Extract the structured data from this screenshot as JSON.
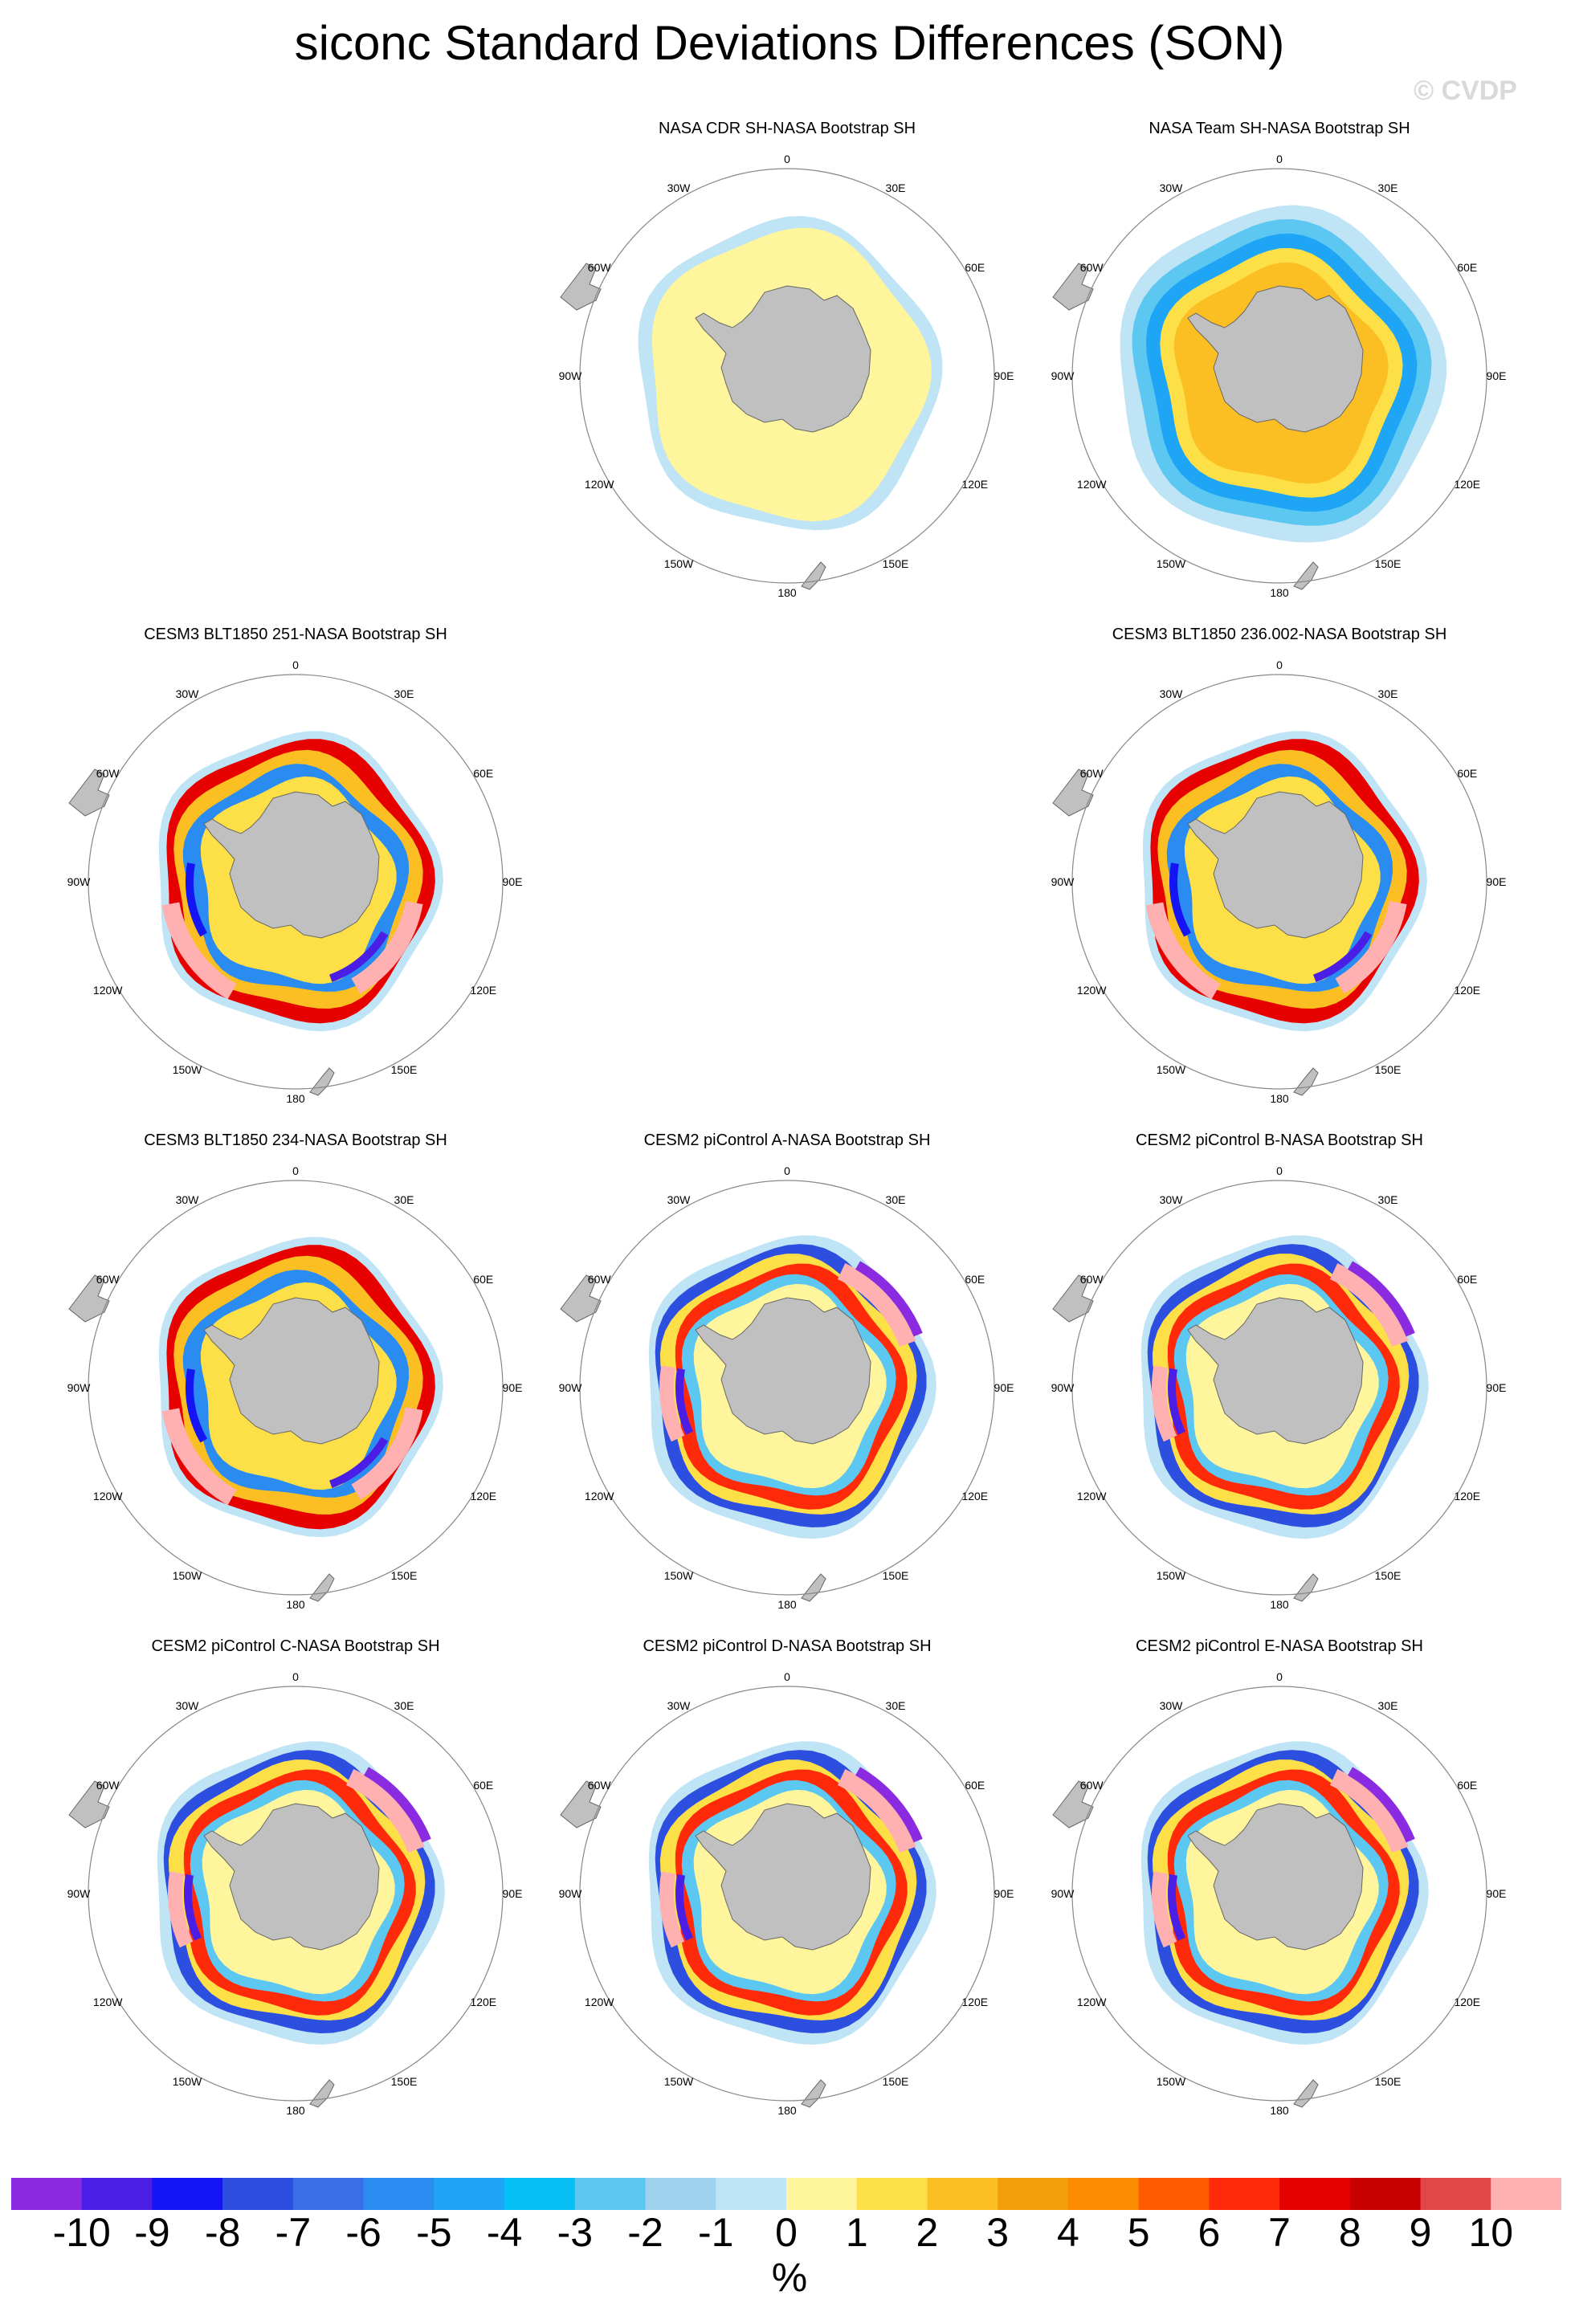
{
  "title": "siconc Standard Deviations Differences (SON)",
  "watermark": "© CVDP",
  "lon_labels": [
    "0",
    "30E",
    "60E",
    "90E",
    "120E",
    "150E",
    "180",
    "150W",
    "120W",
    "90W",
    "60W",
    "30W"
  ],
  "panels": [
    {
      "label": "NASA CDR SH-NASA Bootstrap SH",
      "style": "cdr"
    },
    {
      "label": "NASA Team SH-NASA Bootstrap SH",
      "style": "team"
    },
    {
      "label": "CESM3 BLT1850 251-NASA Bootstrap SH",
      "style": "model"
    },
    {
      "label": "CESM3 BLT1850 236.002-NASA Bootstrap SH",
      "style": "model"
    },
    {
      "label": "CESM3 BLT1850 234-NASA Bootstrap SH",
      "style": "model"
    },
    {
      "label": "CESM2 piControl A-NASA Bootstrap SH",
      "style": "cesm2"
    },
    {
      "label": "CESM2 piControl B-NASA Bootstrap SH",
      "style": "cesm2"
    },
    {
      "label": "CESM2 piControl C-NASA Bootstrap SH",
      "style": "cesm2"
    },
    {
      "label": "CESM2 piControl D-NASA Bootstrap SH",
      "style": "cesm2"
    },
    {
      "label": "CESM2 piControl E-NASA Bootstrap SH",
      "style": "cesm2"
    }
  ],
  "colorbar": {
    "colors": [
      "#8a2be2",
      "#4b1ee6",
      "#1414f5",
      "#2d4fe0",
      "#3a6ee8",
      "#2a8cf0",
      "#1ea5f5",
      "#06c0f5",
      "#5cc8f2",
      "#9ed2ee",
      "#bfe4f5",
      "#fff59d",
      "#fde047",
      "#fbbf24",
      "#f59e0b",
      "#fb8c00",
      "#ff5a00",
      "#ff2a0a",
      "#e60000",
      "#c80000",
      "#e04848",
      "#ffb0b0"
    ],
    "ticks": [
      "-10",
      "-9",
      "-8",
      "-7",
      "-6",
      "-5",
      "-4",
      "-3",
      "-2",
      "-1",
      "0",
      "1",
      "2",
      "3",
      "4",
      "5",
      "6",
      "7",
      "8",
      "9",
      "10"
    ],
    "unit": "%"
  }
}
